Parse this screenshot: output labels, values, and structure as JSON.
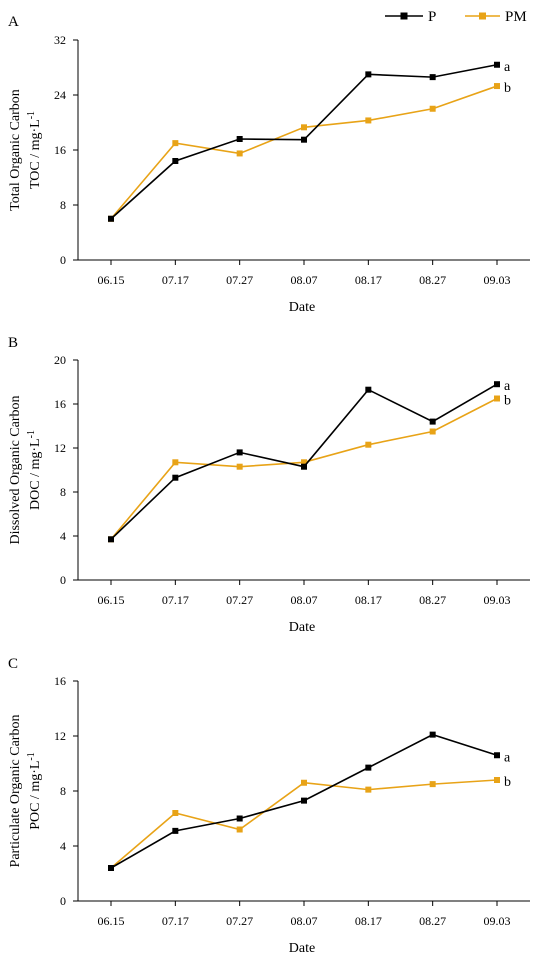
{
  "legend": [
    {
      "name": "P",
      "color": "#000000",
      "marker": "square"
    },
    {
      "name": "PM",
      "color": "#E8A317",
      "marker": "square"
    }
  ],
  "chart_data": [
    {
      "type": "line",
      "panel_label": "A",
      "xlabel": "Date",
      "ylabel_line1": "Total Organic Carbon",
      "ylabel_line2_main": "TOC / mg·L",
      "ylabel_line2_sup": "-1",
      "categories": [
        "06.15",
        "07.17",
        "07.27",
        "08.07",
        "08.17",
        "08.27",
        "09.03"
      ],
      "ylim": [
        0,
        32
      ],
      "yticks": [
        0,
        8,
        16,
        24,
        32
      ],
      "series": [
        {
          "name": "P",
          "color": "#000000",
          "values": [
            6.0,
            14.4,
            17.6,
            17.5,
            27.0,
            26.6,
            28.4
          ],
          "sig": "a"
        },
        {
          "name": "PM",
          "color": "#E8A317",
          "values": [
            6.0,
            17.0,
            15.5,
            19.3,
            20.3,
            22.0,
            25.3
          ],
          "sig": "b"
        }
      ]
    },
    {
      "type": "line",
      "panel_label": "B",
      "xlabel": "Date",
      "ylabel_line1": "Dissolved Organic Carbon",
      "ylabel_line2_main": "DOC / mg·L",
      "ylabel_line2_sup": "-1",
      "categories": [
        "06.15",
        "07.17",
        "07.27",
        "08.07",
        "08.17",
        "08.27",
        "09.03"
      ],
      "ylim": [
        0,
        20
      ],
      "yticks": [
        0,
        4,
        8,
        12,
        16,
        20
      ],
      "series": [
        {
          "name": "P",
          "color": "#000000",
          "values": [
            3.7,
            9.3,
            11.6,
            10.3,
            17.3,
            14.4,
            17.8
          ],
          "sig": "a"
        },
        {
          "name": "PM",
          "color": "#E8A317",
          "values": [
            3.7,
            10.7,
            10.3,
            10.7,
            12.3,
            13.5,
            16.5
          ],
          "sig": "b"
        }
      ]
    },
    {
      "type": "line",
      "panel_label": "C",
      "xlabel": "Date",
      "ylabel_line1": "Particulate Organic Carbon",
      "ylabel_line2_main": "POC / mg·L",
      "ylabel_line2_sup": "-1",
      "categories": [
        "06.15",
        "07.17",
        "07.27",
        "08.07",
        "08.17",
        "08.27",
        "09.03"
      ],
      "ylim": [
        0,
        16
      ],
      "yticks": [
        0,
        4,
        8,
        12,
        16
      ],
      "series": [
        {
          "name": "P",
          "color": "#000000",
          "values": [
            2.4,
            5.1,
            6.0,
            7.3,
            9.7,
            12.1,
            10.6
          ],
          "sig": "a"
        },
        {
          "name": "PM",
          "color": "#E8A317",
          "values": [
            2.4,
            6.4,
            5.2,
            8.6,
            8.1,
            8.5,
            8.8
          ],
          "sig": "b"
        }
      ]
    }
  ]
}
